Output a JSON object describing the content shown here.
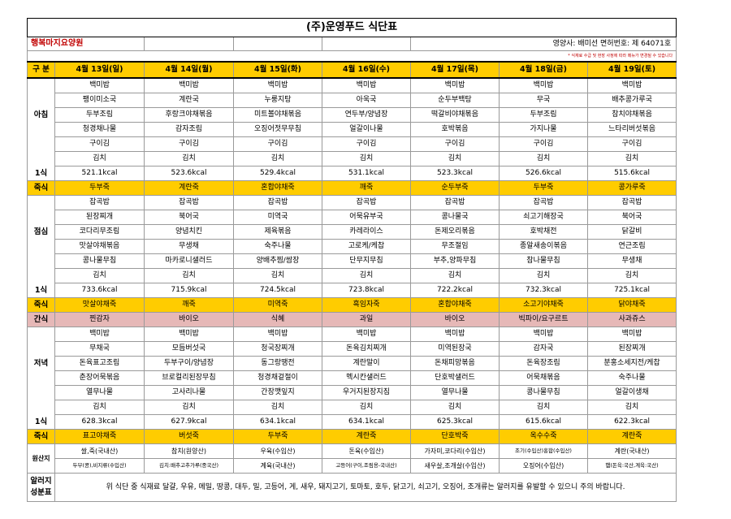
{
  "title": "(주)운영푸드 식단표",
  "home_name": "행복마지요양원",
  "license": "영양사: 배미선  면허번호: 제 64071호",
  "note": "* 식재료 수급 및 현장 사정에 따라 메뉴가 변경될 수 있습니다",
  "header": {
    "label": "구 분",
    "days": [
      "4월 13일(일)",
      "4월 14일(월)",
      "4월 15일(화)",
      "4월 16일(수)",
      "4월 17일(목)",
      "4월 18일(금)",
      "4월 19일(토)"
    ]
  },
  "breakfast": {
    "label": "아침",
    "serving": "1식",
    "rows": [
      [
        "백미밥",
        "백미밥",
        "백미밥",
        "백미밥",
        "백미밥",
        "백미밥",
        "백미밥"
      ],
      [
        "팽이미소국",
        "계란국",
        "누룽지탕",
        "아욱국",
        "순두부백탕",
        "무국",
        "배추콩가루국"
      ],
      [
        "두부조림",
        "후랑크야채볶음",
        "미트볼야채볶음",
        "연두부/양념장",
        "떡갈비야채볶음",
        "두부조림",
        "참치야채볶음"
      ],
      [
        "청경채나물",
        "감자조림",
        "오징어젓무무침",
        "얼갈이나물",
        "호박볶음",
        "가지나물",
        "느타리버섯볶음"
      ],
      [
        "구이김",
        "구이김",
        "구이김",
        "구이김",
        "구이김",
        "구이김",
        "구이김"
      ],
      [
        "김치",
        "김치",
        "김치",
        "김치",
        "김치",
        "김치",
        "김치"
      ]
    ],
    "kcal": [
      "521.1kcal",
      "523.6kcal",
      "529.4kcal",
      "531.1kcal",
      "523.3kcal",
      "526.6kcal",
      "515.6kcal"
    ]
  },
  "breakfast_porridge": {
    "label": "죽식",
    "items": [
      "두부죽",
      "계란죽",
      "혼합야채죽",
      "깨죽",
      "순두부죽",
      "두부죽",
      "콩가루죽"
    ]
  },
  "lunch": {
    "label": "점심",
    "serving": "1식",
    "rows": [
      [
        "잡곡밥",
        "잡곡밥",
        "잡곡밥",
        "잡곡밥",
        "잡곡밥",
        "잡곡밥",
        "잡곡밥"
      ],
      [
        "된장찌개",
        "북어국",
        "미역국",
        "어묵유부국",
        "콩나물국",
        "쇠고기해장국",
        "북어국"
      ],
      [
        "코다리무조림",
        "양념치킨",
        "제육볶음",
        "카레라이스",
        "돈제오리볶음",
        "호박채전",
        "닭갈비"
      ],
      [
        "맛살야채볶음",
        "무생채",
        "숙주나물",
        "고로케/케찹",
        "무조절임",
        "종알새송이볶음",
        "연근조림"
      ],
      [
        "콩나물무침",
        "마카로니샐러드",
        "양배추찜/쌈장",
        "단무지무침",
        "부추,양파무침",
        "참나물무침",
        "무생채"
      ],
      [
        "김치",
        "김치",
        "김치",
        "김치",
        "김치",
        "김치",
        "김치"
      ]
    ],
    "kcal": [
      "733.6kcal",
      "715.9kcal",
      "724.5kcal",
      "723.8kcal",
      "722.2kcal",
      "732.3kcal",
      "725.1kcal"
    ]
  },
  "lunch_porridge": {
    "label": "죽식",
    "items": [
      "맛살야채죽",
      "깨죽",
      "미역죽",
      "흑임자죽",
      "혼합야채죽",
      "소고기야채죽",
      "닭야채죽"
    ]
  },
  "snack": {
    "label": "간식",
    "items": [
      "찐감자",
      "바이오",
      "식혜",
      "과일",
      "바이오",
      "빅파이/요구르트",
      "사과쥬스"
    ]
  },
  "dinner": {
    "label": "저녁",
    "serving": "1식",
    "rows": [
      [
        "백미밥",
        "백미밥",
        "백미밥",
        "백미밥",
        "백미밥",
        "백미밥",
        "백미밥"
      ],
      [
        "무채국",
        "모듬버섯국",
        "청국장찌개",
        "돈육김치찌개",
        "미역된장국",
        "감자국",
        "된장찌개"
      ],
      [
        "돈육표고조림",
        "두부구이/양념장",
        "동그랑땡전",
        "계란말이",
        "돈채피망볶음",
        "돈육장조림",
        "분홍소세지전/케찹"
      ],
      [
        "춘장어묵볶음",
        "브로컬리된장무침",
        "청경채겉절이",
        "멕시칸샐러드",
        "단호박샐러드",
        "어묵채볶음",
        "숙주나물"
      ],
      [
        "열무나물",
        "고사리나물",
        "간장깻잎지",
        "우거지된장지짐",
        "열무나물",
        "콩나물무침",
        "얼갈이생채"
      ],
      [
        "김치",
        "김치",
        "김치",
        "김치",
        "김치",
        "김치",
        "김치"
      ]
    ],
    "kcal": [
      "628.3kcal",
      "627.9kcal",
      "634.1kcal",
      "634.1kcal",
      "625.3kcal",
      "615.6kcal",
      "622.3kcal"
    ]
  },
  "dinner_porridge": {
    "label": "죽식",
    "items": [
      "표고야채죽",
      "버섯죽",
      "두부죽",
      "계란죽",
      "단호박죽",
      "옥수수죽",
      "계란죽"
    ]
  },
  "origin": {
    "label": "원산지",
    "row1": [
      "쌀,죽(국내산)",
      "참치(원양산)",
      "우육(수입산)",
      "돈육(수입산)",
      "가자미,코다리(수입산)",
      "조기(수입산)홍합(수입산)",
      "계란(국내산)"
    ],
    "row2": [
      "두부(콩),비지류(수입산)",
      "김치:배추고추가루(중국산)",
      "계육(국내산)",
      "고등어(구이,조림용-국내산)",
      "새우살,조개살(수입산)",
      "오징어(수입산)",
      "햄(돈육:국산,계육:국산)"
    ]
  },
  "allergy": {
    "label": "알러지 성분표",
    "text": "위 식단 중 식재료 달걀, 우유, 메밀, 땅콩, 대두, 밀, 고등어, 게, 새우, 돼지고기, 토마토, 호두, 닭고기, 쇠고기, 오징어, 조개류는 알러지를 유발할 수 있으니 주의 바랍니다."
  }
}
